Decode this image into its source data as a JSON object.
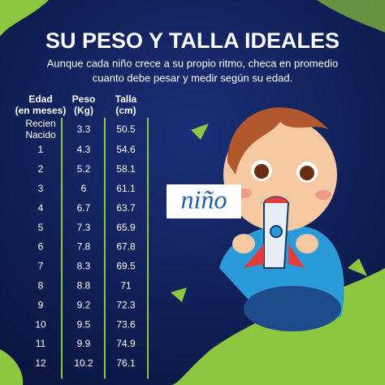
{
  "title": "SU PESO Y TALLA IDEALES",
  "subtitle": [
    "Aunque cada niño crece a su propio ritmo, checa en promedio",
    "cuanto debe pesar y medir según su edad."
  ],
  "label": "niño",
  "table": {
    "headers": [
      [
        "Edad",
        "(en meses)"
      ],
      [
        "Peso",
        "(Kg)"
      ],
      [
        "Talla",
        "(cm)"
      ]
    ],
    "rows": [
      [
        [
          "Recien",
          "Nacido"
        ],
        3.3,
        50.5
      ],
      [
        1,
        4.3,
        54.6
      ],
      [
        2,
        5.2,
        58.1
      ],
      [
        3,
        6,
        61.1
      ],
      [
        4,
        6.7,
        63.7
      ],
      [
        5,
        7.3,
        65.9
      ],
      [
        6,
        7.8,
        67.8
      ],
      [
        7,
        8.3,
        69.5
      ],
      [
        8,
        8.8,
        71
      ],
      [
        9,
        9.2,
        72.3
      ],
      [
        10,
        9.5,
        73.6
      ],
      [
        11,
        9.9,
        74.9
      ],
      [
        12,
        10.2,
        76.1
      ]
    ]
  }
}
